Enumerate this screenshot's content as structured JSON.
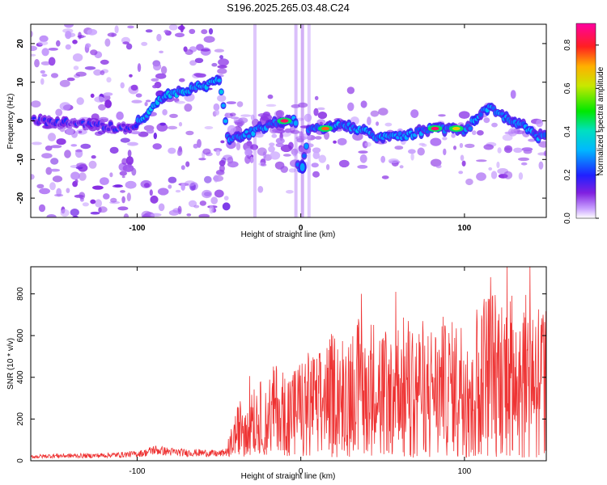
{
  "chart_data": [
    {
      "type": "heatmap",
      "title": "S196.2025.265.03.48.C24",
      "xlabel": "Height of straight line (km)",
      "ylabel": "Frequency (Hz)",
      "xlim": [
        -165,
        150
      ],
      "ylim": [
        -25,
        25
      ],
      "x_ticks": [
        "-100",
        "0",
        "100"
      ],
      "y_ticks": [
        "-20",
        "-10",
        "0",
        "10",
        "20"
      ],
      "colorbar": {
        "label": "Normalized spectral amplitude",
        "range": [
          0,
          0.9
        ],
        "ticks": [
          "0.0",
          "0.2",
          "0.4",
          "0.6",
          "0.8"
        ]
      },
      "ridge": [
        {
          "x": -160,
          "y": 0
        },
        {
          "x": -130,
          "y": -1
        },
        {
          "x": -105,
          "y": -2
        },
        {
          "x": -97,
          "y": 0
        },
        {
          "x": -90,
          "y": 4
        },
        {
          "x": -80,
          "y": 7
        },
        {
          "x": -70,
          "y": 8
        },
        {
          "x": -60,
          "y": 9
        },
        {
          "x": -50,
          "y": 11
        },
        {
          "x": -44,
          "y": -5
        },
        {
          "x": -30,
          "y": -3
        },
        {
          "x": -20,
          "y": -1
        },
        {
          "x": -10,
          "y": 0
        },
        {
          "x": -2,
          "y": 0
        },
        {
          "x": 1,
          "y": -12
        },
        {
          "x": 5,
          "y": -2
        },
        {
          "x": 15,
          "y": -2
        },
        {
          "x": 25,
          "y": -1
        },
        {
          "x": 35,
          "y": -2
        },
        {
          "x": 45,
          "y": -4
        },
        {
          "x": 55,
          "y": -4
        },
        {
          "x": 60,
          "y": -4
        },
        {
          "x": 70,
          "y": -3
        },
        {
          "x": 80,
          "y": -2
        },
        {
          "x": 90,
          "y": -2
        },
        {
          "x": 100,
          "y": -3
        },
        {
          "x": 108,
          "y": 1
        },
        {
          "x": 115,
          "y": 4
        },
        {
          "x": 125,
          "y": 1
        },
        {
          "x": 135,
          "y": -1
        },
        {
          "x": 143,
          "y": -4
        }
      ],
      "hotspots": [
        {
          "x": -10,
          "y": 0,
          "value": 0.85
        },
        {
          "x": 15,
          "y": -2,
          "value": 0.75
        },
        {
          "x": 82,
          "y": -2,
          "value": 0.85
        },
        {
          "x": 95,
          "y": -2,
          "value": 0.65
        }
      ]
    },
    {
      "type": "line",
      "xlabel": "Height of straight line (km)",
      "ylabel": "SNR (10 * v/v)",
      "xlim": [
        -165,
        150
      ],
      "ylim": [
        0,
        930
      ],
      "x_ticks": [
        "-100",
        "0",
        "100"
      ],
      "y_ticks": [
        "0",
        "200",
        "400",
        "600",
        "800"
      ],
      "color": "#ee3333",
      "series": [
        {
          "values": [
            {
              "x": -165,
              "y": 20
            },
            {
              "x": -150,
              "y": 25
            },
            {
              "x": -130,
              "y": 25
            },
            {
              "x": -110,
              "y": 30
            },
            {
              "x": -100,
              "y": 35
            },
            {
              "x": -95,
              "y": 40
            },
            {
              "x": -90,
              "y": 55
            },
            {
              "x": -85,
              "y": 50
            },
            {
              "x": -80,
              "y": 45
            },
            {
              "x": -70,
              "y": 40
            },
            {
              "x": -60,
              "y": 40
            },
            {
              "x": -50,
              "y": 35
            },
            {
              "x": -45,
              "y": 45
            },
            {
              "x": -40,
              "y": 120
            },
            {
              "x": -35,
              "y": 180
            },
            {
              "x": -30,
              "y": 230
            },
            {
              "x": -25,
              "y": 200
            },
            {
              "x": -20,
              "y": 220
            },
            {
              "x": -15,
              "y": 250
            },
            {
              "x": -10,
              "y": 230
            },
            {
              "x": -5,
              "y": 240
            },
            {
              "x": 0,
              "y": 260
            },
            {
              "x": 5,
              "y": 280
            },
            {
              "x": 10,
              "y": 270
            },
            {
              "x": 15,
              "y": 300
            },
            {
              "x": 20,
              "y": 330
            },
            {
              "x": 25,
              "y": 320
            },
            {
              "x": 30,
              "y": 340
            },
            {
              "x": 35,
              "y": 360
            },
            {
              "x": 40,
              "y": 370
            },
            {
              "x": 45,
              "y": 360
            },
            {
              "x": 50,
              "y": 350
            },
            {
              "x": 55,
              "y": 340
            },
            {
              "x": 60,
              "y": 360
            },
            {
              "x": 65,
              "y": 370
            },
            {
              "x": 70,
              "y": 350
            },
            {
              "x": 75,
              "y": 360
            },
            {
              "x": 80,
              "y": 350
            },
            {
              "x": 85,
              "y": 340
            },
            {
              "x": 90,
              "y": 350
            },
            {
              "x": 95,
              "y": 360
            },
            {
              "x": 100,
              "y": 370
            },
            {
              "x": 105,
              "y": 380
            },
            {
              "x": 110,
              "y": 420
            },
            {
              "x": 115,
              "y": 450
            },
            {
              "x": 120,
              "y": 430
            },
            {
              "x": 125,
              "y": 420
            },
            {
              "x": 130,
              "y": 440
            },
            {
              "x": 135,
              "y": 430
            },
            {
              "x": 140,
              "y": 410
            },
            {
              "x": 145,
              "y": 420
            },
            {
              "x": 150,
              "y": 380
            }
          ]
        }
      ],
      "peaks": [
        {
          "x": 37,
          "y": 800
        },
        {
          "x": 58,
          "y": 810
        },
        {
          "x": 116,
          "y": 880
        },
        {
          "x": 126,
          "y": 930
        },
        {
          "x": 140,
          "y": 930
        },
        {
          "x": 87,
          "y": 690
        },
        {
          "x": 148,
          "y": 700
        }
      ]
    }
  ]
}
